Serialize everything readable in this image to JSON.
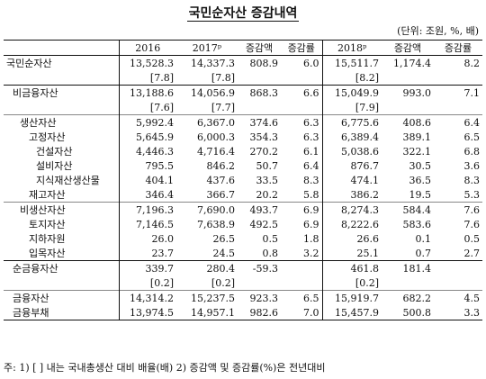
{
  "title": "국민순자산 증감내역",
  "unit": "(단위: 조원, %, 배)",
  "headers": {
    "y2016": "2016",
    "y2017": "2017ᵖ",
    "change_amt": "증감액",
    "change_rate": "증감률",
    "y2018": "2018ᵖ",
    "change_amt2": "증감액",
    "change_rate2": "증감률"
  },
  "rows": [
    {
      "label": "국민순자산",
      "v2016": "13,528.3",
      "v2017": "14,337.3",
      "c1": "808.9",
      "r1": "6.0",
      "v2018": "15,511.7",
      "c2": "1,174.4",
      "r2": "8.2"
    },
    {
      "label": "",
      "v2016": "[7.8]",
      "v2017": "[7.8]",
      "c1": "",
      "r1": "",
      "v2018": "[8.2]",
      "c2": "",
      "r2": ""
    },
    {
      "label": "비금융자산",
      "v2016": "13,188.6",
      "v2017": "14,056.9",
      "c1": "868.3",
      "r1": "6.6",
      "v2018": "15,049.9",
      "c2": "993.0",
      "r2": "7.1"
    },
    {
      "label": "",
      "v2016": "[7.6]",
      "v2017": "[7.7]",
      "c1": "",
      "r1": "",
      "v2018": "[7.9]",
      "c2": "",
      "r2": ""
    },
    {
      "label": "생산자산",
      "v2016": "5,992.4",
      "v2017": "6,367.0",
      "c1": "374.6",
      "r1": "6.3",
      "v2018": "6,775.6",
      "c2": "408.6",
      "r2": "6.4"
    },
    {
      "label": "고정자산",
      "v2016": "5,645.9",
      "v2017": "6,000.3",
      "c1": "354.3",
      "r1": "6.3",
      "v2018": "6,389.4",
      "c2": "389.1",
      "r2": "6.5"
    },
    {
      "label": "건설자산",
      "v2016": "4,446.3",
      "v2017": "4,716.4",
      "c1": "270.2",
      "r1": "6.1",
      "v2018": "5,038.6",
      "c2": "322.1",
      "r2": "6.8"
    },
    {
      "label": "설비자산",
      "v2016": "795.5",
      "v2017": "846.2",
      "c1": "50.7",
      "r1": "6.4",
      "v2018": "876.7",
      "c2": "30.5",
      "r2": "3.6"
    },
    {
      "label": "지식재산생산물",
      "v2016": "404.1",
      "v2017": "437.6",
      "c1": "33.5",
      "r1": "8.3",
      "v2018": "474.1",
      "c2": "36.5",
      "r2": "8.3"
    },
    {
      "label": "재고자산",
      "v2016": "346.4",
      "v2017": "366.7",
      "c1": "20.2",
      "r1": "5.8",
      "v2018": "386.2",
      "c2": "19.5",
      "r2": "5.3"
    },
    {
      "label": "비생산자산",
      "v2016": "7,196.3",
      "v2017": "7,690.0",
      "c1": "493.7",
      "r1": "6.9",
      "v2018": "8,274.3",
      "c2": "584.4",
      "r2": "7.6"
    },
    {
      "label": "토지자산",
      "v2016": "7,146.5",
      "v2017": "7,638.9",
      "c1": "492.5",
      "r1": "6.9",
      "v2018": "8,222.6",
      "c2": "583.6",
      "r2": "7.6"
    },
    {
      "label": "지하자원",
      "v2016": "26.0",
      "v2017": "26.5",
      "c1": "0.5",
      "r1": "1.8",
      "v2018": "26.6",
      "c2": "0.1",
      "r2": "0.5"
    },
    {
      "label": "입목자산",
      "v2016": "23.7",
      "v2017": "24.5",
      "c1": "0.8",
      "r1": "3.2",
      "v2018": "25.1",
      "c2": "0.7",
      "r2": "2.7"
    },
    {
      "label": "순금융자산",
      "v2016": "339.7",
      "v2017": "280.4",
      "c1": "-59.3",
      "r1": "",
      "v2018": "461.8",
      "c2": "181.4",
      "r2": ""
    },
    {
      "label": "",
      "v2016": "[0.2]",
      "v2017": "[0.2]",
      "c1": "",
      "r1": "",
      "v2018": "[0.2]",
      "c2": "",
      "r2": ""
    },
    {
      "label": "금융자산",
      "v2016": "14,314.2",
      "v2017": "15,237.5",
      "c1": "923.3",
      "r1": "6.5",
      "v2018": "15,919.7",
      "c2": "682.2",
      "r2": "4.5"
    },
    {
      "label": "금융부채",
      "v2016": "13,974.5",
      "v2017": "14,957.1",
      "c1": "982.6",
      "r1": "7.0",
      "v2018": "15,457.9",
      "c2": "500.8",
      "r2": "3.3"
    }
  ],
  "note": "주: 1) [ ] 내는 국내총생산 대비 배율(배)   2) 증감액 및 증감률(%)은 전년대비"
}
